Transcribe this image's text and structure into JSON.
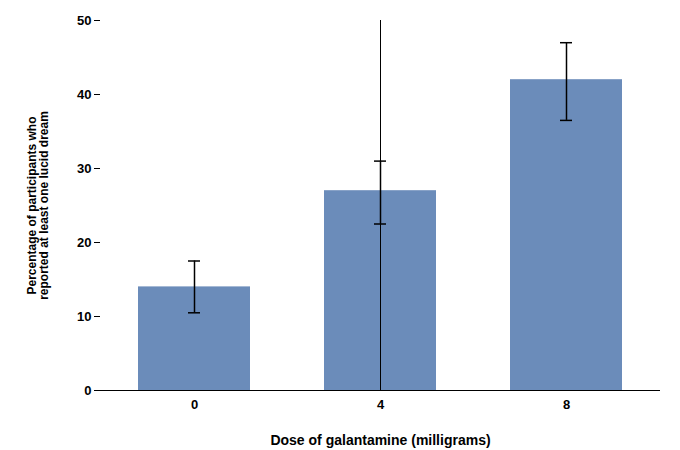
{
  "chart_data": {
    "type": "bar",
    "categories": [
      "0",
      "4",
      "8"
    ],
    "values": [
      14.0,
      27.0,
      42.0
    ],
    "errors_upper": [
      3.5,
      4.0,
      5.0
    ],
    "errors_lower": [
      3.5,
      4.5,
      5.5
    ],
    "color": "#6b8cba",
    "xlabel": "Dose of galantamine (milligrams)",
    "ylabel": "Percentage of participants who\nreported at least one lucid dream",
    "ylim": [
      0,
      50
    ],
    "yticks": [
      0,
      10,
      20,
      30,
      40,
      50
    ],
    "grid": false
  }
}
